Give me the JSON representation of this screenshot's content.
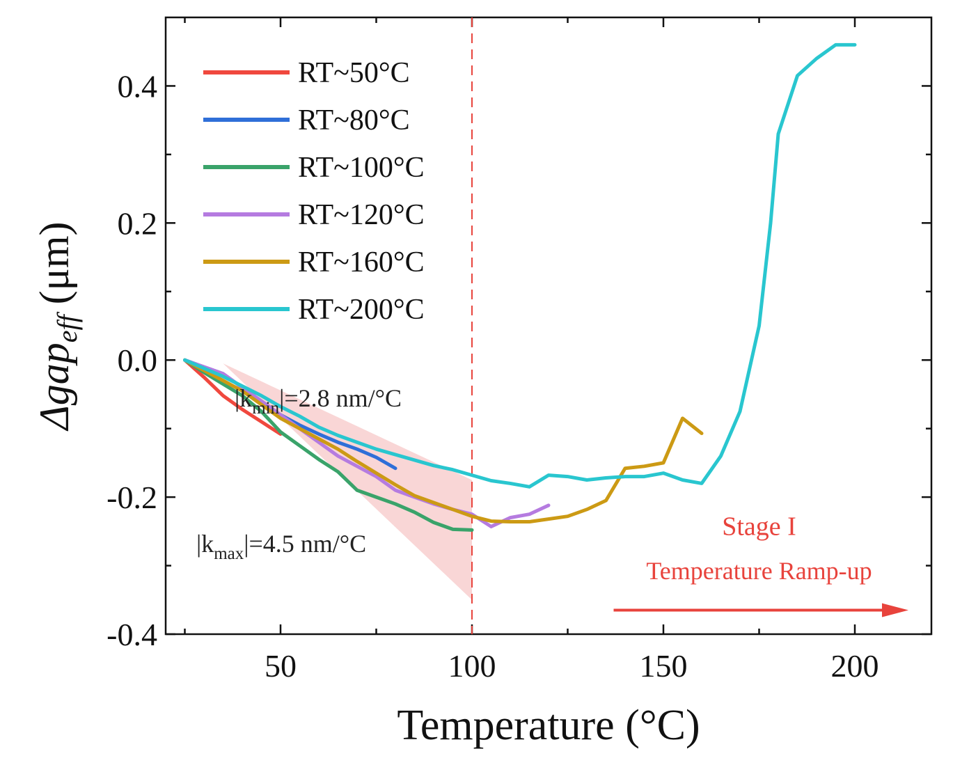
{
  "chart_data": {
    "type": "line",
    "xlabel": "Temperature (°C)",
    "ylabel": {
      "prefix": "Δ",
      "main": "gap",
      "subscript": "eff",
      "unit": " (μm)"
    },
    "xlim": [
      20,
      220
    ],
    "ylim": [
      -0.4,
      0.5
    ],
    "xticks": [
      50,
      100,
      150,
      200
    ],
    "xtick_labels": [
      "50",
      "100",
      "150",
      "200"
    ],
    "yticks": [
      0.4,
      0.2,
      0.0,
      -0.2,
      -0.4
    ],
    "ytick_labels": [
      "0.4",
      "0.2",
      "0.0",
      "-0.2",
      "-0.4"
    ],
    "legend_position": "top-left",
    "series": [
      {
        "name": "RT~50°C",
        "color": "#f0483e",
        "points": [
          [
            25,
            0.0
          ],
          [
            30,
            -0.025
          ],
          [
            35,
            -0.052
          ],
          [
            40,
            -0.072
          ],
          [
            45,
            -0.09
          ],
          [
            50,
            -0.108
          ]
        ]
      },
      {
        "name": "RT~80°C",
        "color": "#2f6fd8",
        "points": [
          [
            25,
            0.0
          ],
          [
            30,
            -0.01
          ],
          [
            35,
            -0.02
          ],
          [
            40,
            -0.04
          ],
          [
            45,
            -0.06
          ],
          [
            50,
            -0.08
          ],
          [
            55,
            -0.095
          ],
          [
            60,
            -0.108
          ],
          [
            65,
            -0.12
          ],
          [
            70,
            -0.13
          ],
          [
            75,
            -0.142
          ],
          [
            80,
            -0.158
          ]
        ]
      },
      {
        "name": "RT~100°C",
        "color": "#3aa36a",
        "points": [
          [
            25,
            0.0
          ],
          [
            30,
            -0.018
          ],
          [
            35,
            -0.035
          ],
          [
            40,
            -0.052
          ],
          [
            45,
            -0.075
          ],
          [
            50,
            -0.105
          ],
          [
            55,
            -0.125
          ],
          [
            60,
            -0.145
          ],
          [
            65,
            -0.163
          ],
          [
            70,
            -0.19
          ],
          [
            75,
            -0.2
          ],
          [
            80,
            -0.21
          ],
          [
            85,
            -0.222
          ],
          [
            90,
            -0.237
          ],
          [
            95,
            -0.247
          ],
          [
            100,
            -0.248
          ]
        ]
      },
      {
        "name": "RT~120°C",
        "color": "#b57be0",
        "points": [
          [
            25,
            0.0
          ],
          [
            30,
            -0.01
          ],
          [
            35,
            -0.02
          ],
          [
            40,
            -0.04
          ],
          [
            45,
            -0.06
          ],
          [
            50,
            -0.08
          ],
          [
            55,
            -0.1
          ],
          [
            60,
            -0.12
          ],
          [
            65,
            -0.14
          ],
          [
            70,
            -0.155
          ],
          [
            75,
            -0.17
          ],
          [
            80,
            -0.19
          ],
          [
            85,
            -0.2
          ],
          [
            90,
            -0.21
          ],
          [
            95,
            -0.218
          ],
          [
            100,
            -0.225
          ],
          [
            105,
            -0.243
          ],
          [
            110,
            -0.23
          ],
          [
            115,
            -0.225
          ],
          [
            120,
            -0.212
          ]
        ]
      },
      {
        "name": "RT~160°C",
        "color": "#cc9a14",
        "points": [
          [
            25,
            0.0
          ],
          [
            30,
            -0.015
          ],
          [
            35,
            -0.03
          ],
          [
            40,
            -0.045
          ],
          [
            45,
            -0.065
          ],
          [
            50,
            -0.085
          ],
          [
            55,
            -0.1
          ],
          [
            60,
            -0.115
          ],
          [
            65,
            -0.13
          ],
          [
            70,
            -0.148
          ],
          [
            75,
            -0.165
          ],
          [
            80,
            -0.182
          ],
          [
            85,
            -0.198
          ],
          [
            90,
            -0.208
          ],
          [
            95,
            -0.218
          ],
          [
            100,
            -0.228
          ],
          [
            105,
            -0.235
          ],
          [
            110,
            -0.236
          ],
          [
            115,
            -0.236
          ],
          [
            120,
            -0.232
          ],
          [
            125,
            -0.228
          ],
          [
            130,
            -0.218
          ],
          [
            135,
            -0.205
          ],
          [
            140,
            -0.158
          ],
          [
            145,
            -0.155
          ],
          [
            150,
            -0.15
          ],
          [
            155,
            -0.085
          ],
          [
            160,
            -0.107
          ]
        ]
      },
      {
        "name": "RT~200°C",
        "color": "#29c6cf",
        "points": [
          [
            25,
            0.0
          ],
          [
            30,
            -0.012
          ],
          [
            35,
            -0.024
          ],
          [
            40,
            -0.038
          ],
          [
            45,
            -0.052
          ],
          [
            50,
            -0.068
          ],
          [
            55,
            -0.082
          ],
          [
            60,
            -0.098
          ],
          [
            65,
            -0.11
          ],
          [
            70,
            -0.12
          ],
          [
            75,
            -0.13
          ],
          [
            80,
            -0.138
          ],
          [
            85,
            -0.146
          ],
          [
            90,
            -0.154
          ],
          [
            95,
            -0.16
          ],
          [
            100,
            -0.168
          ],
          [
            105,
            -0.176
          ],
          [
            110,
            -0.18
          ],
          [
            115,
            -0.185
          ],
          [
            120,
            -0.168
          ],
          [
            125,
            -0.17
          ],
          [
            130,
            -0.175
          ],
          [
            135,
            -0.172
          ],
          [
            140,
            -0.17
          ],
          [
            145,
            -0.17
          ],
          [
            150,
            -0.165
          ],
          [
            155,
            -0.175
          ],
          [
            160,
            -0.18
          ],
          [
            165,
            -0.14
          ],
          [
            170,
            -0.075
          ],
          [
            175,
            0.05
          ],
          [
            178,
            0.2
          ],
          [
            180,
            0.33
          ],
          [
            185,
            0.415
          ],
          [
            190,
            0.44
          ],
          [
            195,
            0.46
          ],
          [
            200,
            0.46
          ]
        ]
      }
    ],
    "reference_line": {
      "x": 100,
      "color": "#e8433c",
      "style": "dashed"
    },
    "shaded_region": {
      "color": "#f4b5b5",
      "vertices": [
        [
          35,
          -0.005
        ],
        [
          100,
          -0.175
        ],
        [
          100,
          -0.35
        ]
      ]
    },
    "annotations": {
      "kmin": {
        "pre": "|k",
        "sub": "min",
        "post": "|=2.8 nm/°C",
        "x": 38,
        "y": -0.068
      },
      "kmax": {
        "pre": "|k",
        "sub": "max",
        "post": "|=4.5 nm/°C",
        "x": 28,
        "y": -0.28
      },
      "stage_title": {
        "text": "Stage I",
        "x": 175,
        "y": -0.255,
        "color": "#e8433c"
      },
      "stage_subtitle": {
        "text": "Temperature Ramp-up",
        "x": 175,
        "y": -0.32,
        "color": "#e8433c"
      },
      "arrow": {
        "from": [
          137,
          -0.365
        ],
        "to": [
          214,
          -0.365
        ],
        "color": "#e8433c"
      }
    }
  }
}
